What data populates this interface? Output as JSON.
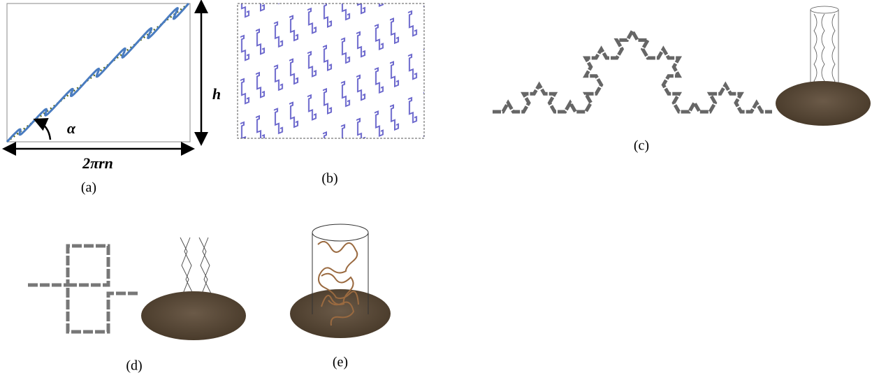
{
  "panels": [
    {
      "label": "(a)",
      "annotations": {
        "angle": "α",
        "height": "h",
        "width": "2πrn"
      }
    },
    {
      "label": "(b)"
    },
    {
      "label": "(c)"
    },
    {
      "label": "(d)"
    },
    {
      "label": "(e)"
    }
  ]
}
